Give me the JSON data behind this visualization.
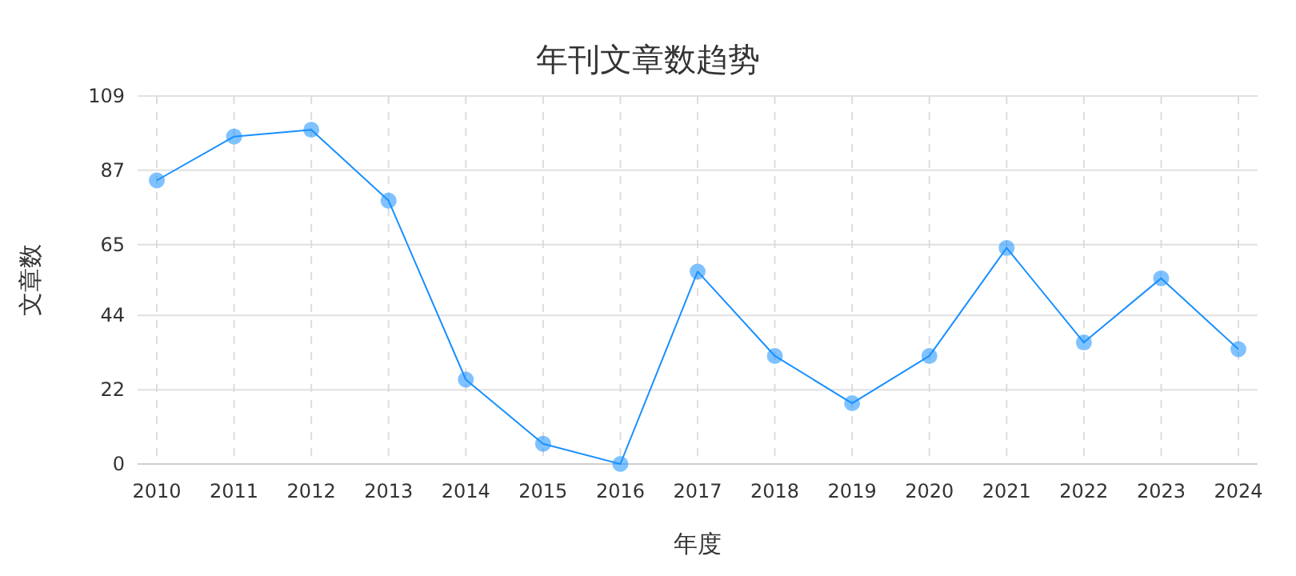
{
  "chart_data": {
    "type": "line",
    "title": "年刊文章数趋势",
    "xlabel": "年度",
    "ylabel": "文章数",
    "categories": [
      "2010",
      "2011",
      "2012",
      "2013",
      "2014",
      "2015",
      "2016",
      "2017",
      "2018",
      "2019",
      "2020",
      "2021",
      "2022",
      "2023",
      "2024"
    ],
    "series": [
      {
        "color": "#1890ff",
        "values": [
          84,
          97,
          99,
          78,
          25,
          6,
          0,
          57,
          32,
          18,
          32,
          64,
          36,
          55,
          34
        ]
      }
    ],
    "ylim": [
      0,
      109
    ],
    "yticks": [
      0,
      22,
      44,
      65,
      87,
      109
    ],
    "grid": true,
    "marker": "circle",
    "line_style": "solid"
  }
}
